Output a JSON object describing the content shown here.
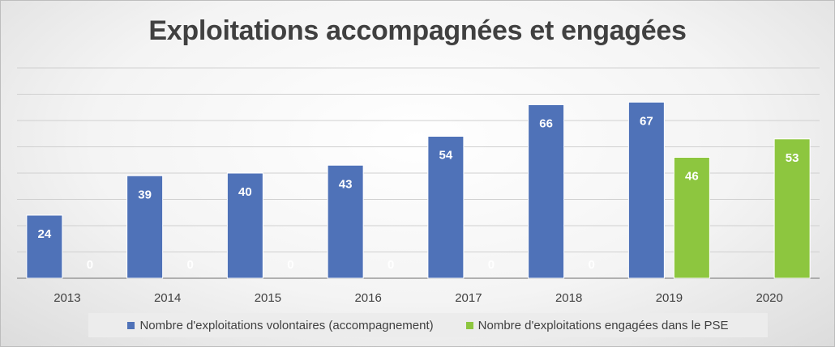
{
  "chart_data": {
    "type": "bar",
    "title": "Exploitations accompagnées et engagées",
    "categories": [
      "2013",
      "2014",
      "2015",
      "2016",
      "2017",
      "2018",
      "2019",
      "2020"
    ],
    "series": [
      {
        "name": "Nombre d'exploitations volontaires (accompagnement)",
        "color": "#4f72b8",
        "values": [
          24,
          39,
          40,
          43,
          54,
          66,
          67,
          null
        ],
        "labels": [
          "24",
          "39",
          "40",
          "43",
          "54",
          "66",
          "67",
          ""
        ]
      },
      {
        "name": "Nombre d'exploitations engagées dans le PSE",
        "color": "#8dc63f",
        "values": [
          0,
          0,
          0,
          0,
          0,
          0,
          46,
          53
        ],
        "labels": [
          "0",
          "0",
          "0",
          "0",
          "0",
          "0",
          "46",
          "53"
        ]
      }
    ],
    "ylim": [
      0,
      80
    ],
    "grid": true,
    "legend_position": "bottom",
    "xlabel": "",
    "ylabel": ""
  }
}
